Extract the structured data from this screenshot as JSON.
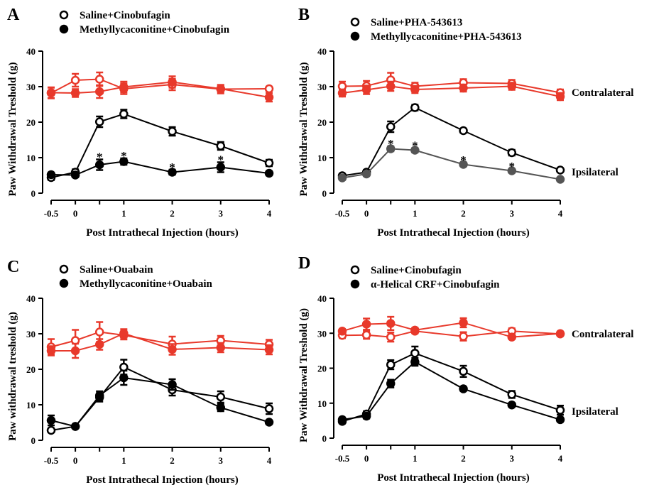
{
  "chart_data": [
    {
      "panel": "A",
      "type": "line",
      "legend": [
        "Saline+Cinobufagin",
        "Methyllycaconitine+Cinobufagin"
      ],
      "ylabel": "Paw Withdrawal Treshold (g)",
      "xlabel": "Post Intrathecal Injection (hours)",
      "x": [
        -0.5,
        0,
        0.5,
        1,
        2,
        3,
        4
      ],
      "xticks": [
        "-0.5",
        "0",
        "1",
        "2",
        "3",
        "4"
      ],
      "yticks": [
        "0",
        "10",
        "20",
        "30",
        "40"
      ],
      "xlim": [
        -0.5,
        4
      ],
      "ylim": [
        0,
        40
      ],
      "side_labels": [],
      "series": [
        {
          "color": "#e8392b",
          "marker": "open",
          "values": [
            28.2,
            31.8,
            32.1,
            29.4,
            30.6,
            29.3,
            29.4
          ],
          "errors": [
            1.5,
            1.8,
            1.9,
            1.5,
            1.6,
            1.2,
            0.6
          ]
        },
        {
          "color": "#e8392b",
          "marker": "filled",
          "values": [
            28.3,
            28.2,
            28.6,
            29.9,
            31.3,
            29.4,
            27.0
          ],
          "errors": [
            1.5,
            1.1,
            1.8,
            1.5,
            1.6,
            0.9,
            1.2
          ]
        },
        {
          "color": "#000000",
          "marker": "open",
          "values": [
            4.4,
            5.9,
            20.1,
            22.3,
            17.4,
            13.3,
            8.5
          ],
          "errors": [
            0.7,
            0.8,
            1.5,
            1.2,
            1.2,
            1.1,
            0.9
          ]
        },
        {
          "color": "#000000",
          "marker": "filled",
          "values": [
            5.2,
            5.1,
            8.0,
            8.9,
            5.9,
            7.3,
            5.6
          ],
          "errors": [
            0.6,
            0.6,
            1.5,
            0.9,
            0.7,
            1.4,
            0.6
          ]
        }
      ],
      "stars": [
        0.5,
        1,
        2,
        3
      ]
    },
    {
      "panel": "B",
      "type": "line",
      "legend": [
        "Saline+PHA-543613",
        "Methyllycaconitine+PHA-543613"
      ],
      "ylabel": "Paw Withdrawal Treshold (g)",
      "xlabel": "Post Intrathecal Injection (hours)",
      "x": [
        -0.5,
        0,
        0.5,
        1,
        2,
        3,
        4
      ],
      "xticks": [
        "-0.5",
        "0",
        "1",
        "2",
        "3",
        "4"
      ],
      "yticks": [
        "0",
        "10",
        "20",
        "30",
        "40"
      ],
      "xlim": [
        -0.5,
        4
      ],
      "ylim": [
        0,
        40
      ],
      "side_labels": [
        "Contralateral",
        "Ipsilateral"
      ],
      "series": [
        {
          "color": "#e8392b",
          "marker": "open",
          "values": [
            30.1,
            30.2,
            31.9,
            30.1,
            31.1,
            30.9,
            28.3
          ],
          "errors": [
            1.3,
            1.4,
            2.0,
            1.0,
            1.0,
            1.0,
            0.9
          ]
        },
        {
          "color": "#e8392b",
          "marker": "filled",
          "values": [
            28.2,
            29.1,
            30.1,
            29.2,
            29.6,
            30.1,
            27.2
          ],
          "errors": [
            1.0,
            1.2,
            1.3,
            1.0,
            1.0,
            1.0,
            1.0
          ]
        },
        {
          "color": "#000000",
          "marker": "open",
          "values": [
            4.9,
            5.9,
            18.7,
            24.1,
            17.6,
            11.4,
            6.5
          ],
          "errors": [
            0.5,
            0.6,
            1.5,
            0.8,
            0.6,
            0.8,
            0.5
          ]
        },
        {
          "color": "#555555",
          "marker": "filled",
          "values": [
            4.3,
            5.4,
            12.5,
            12.1,
            8.1,
            6.3,
            3.9
          ],
          "errors": [
            0.5,
            0.5,
            0.7,
            0.6,
            0.5,
            0.5,
            0.4
          ]
        }
      ],
      "stars": [
        0.5,
        1,
        2,
        3
      ]
    },
    {
      "panel": "C",
      "type": "line",
      "legend": [
        "Saline+Ouabain",
        "Methyllycaconitine+Ouabain"
      ],
      "ylabel": "Paw withdrawal treshold (g)",
      "xlabel": "Post Intrathecal Injection (hours)",
      "x": [
        -0.5,
        0,
        0.5,
        1,
        2,
        3,
        4
      ],
      "xticks": [
        "-0.5",
        "0",
        "1",
        "2",
        "3",
        "4"
      ],
      "yticks": [
        "0",
        "10",
        "20",
        "30",
        "40"
      ],
      "xlim": [
        -0.5,
        4
      ],
      "ylim": [
        0,
        40
      ],
      "side_labels": [],
      "series": [
        {
          "color": "#e8392b",
          "marker": "open",
          "values": [
            26.3,
            28.1,
            30.5,
            29.6,
            27.1,
            28.1,
            27.0
          ],
          "errors": [
            2.2,
            3.0,
            2.8,
            1.2,
            2.1,
            1.3,
            1.3
          ]
        },
        {
          "color": "#e8392b",
          "marker": "filled",
          "values": [
            25.2,
            25.2,
            27.0,
            30.1,
            25.6,
            26.1,
            25.5
          ],
          "errors": [
            1.3,
            2.0,
            1.5,
            1.2,
            1.5,
            1.3,
            1.3
          ]
        },
        {
          "color": "#000000",
          "marker": "open",
          "values": [
            2.8,
            3.9,
            12.1,
            20.6,
            14.2,
            12.2,
            8.9
          ],
          "errors": [
            0.5,
            0.5,
            1.2,
            2.1,
            1.6,
            1.6,
            1.5
          ]
        },
        {
          "color": "#000000",
          "marker": "filled",
          "values": [
            5.6,
            3.9,
            12.6,
            17.6,
            15.7,
            9.2,
            5.1
          ],
          "errors": [
            1.4,
            0.5,
            1.2,
            2.0,
            1.5,
            1.0,
            0.5
          ]
        }
      ],
      "stars": []
    },
    {
      "panel": "D",
      "type": "line",
      "legend": [
        "Saline+Cinobufagin",
        "α-Helical CRF+Cinobufagin"
      ],
      "ylabel": "Paw Withdrawal Treshold (g)",
      "xlabel": "Post Intrathecal Injection (hours)",
      "x": [
        -0.5,
        0,
        0.5,
        1,
        2,
        3,
        4
      ],
      "xticks": [
        "-0.5",
        "0",
        "1",
        "2",
        "3",
        "4"
      ],
      "yticks": [
        "0",
        "10",
        "20",
        "30",
        "40"
      ],
      "xlim": [
        -0.5,
        4
      ],
      "ylim": [
        0,
        40
      ],
      "side_labels": [
        "Contralateral",
        "Ipsilateral"
      ],
      "series": [
        {
          "color": "#e8392b",
          "marker": "open",
          "values": [
            29.4,
            29.5,
            28.9,
            30.6,
            29.1,
            30.6,
            29.8
          ],
          "errors": [
            0.8,
            1.1,
            1.3,
            0.6,
            1.2,
            0.8,
            0.6
          ]
        },
        {
          "color": "#e8392b",
          "marker": "filled",
          "values": [
            30.6,
            32.6,
            32.8,
            30.9,
            33.0,
            28.9,
            29.9
          ],
          "errors": [
            0.6,
            1.6,
            1.9,
            0.6,
            1.3,
            0.6,
            0.6
          ]
        },
        {
          "color": "#000000",
          "marker": "open",
          "values": [
            4.8,
            6.9,
            21.0,
            24.3,
            19.1,
            12.5,
            8.0
          ],
          "errors": [
            0.6,
            0.8,
            1.3,
            1.9,
            1.6,
            1.0,
            1.3
          ]
        },
        {
          "color": "#000000",
          "marker": "filled",
          "values": [
            5.3,
            6.3,
            15.6,
            21.8,
            14.1,
            9.5,
            5.3
          ],
          "errors": [
            0.6,
            0.7,
            1.1,
            1.1,
            0.6,
            0.6,
            0.6
          ]
        }
      ],
      "stars": []
    }
  ]
}
